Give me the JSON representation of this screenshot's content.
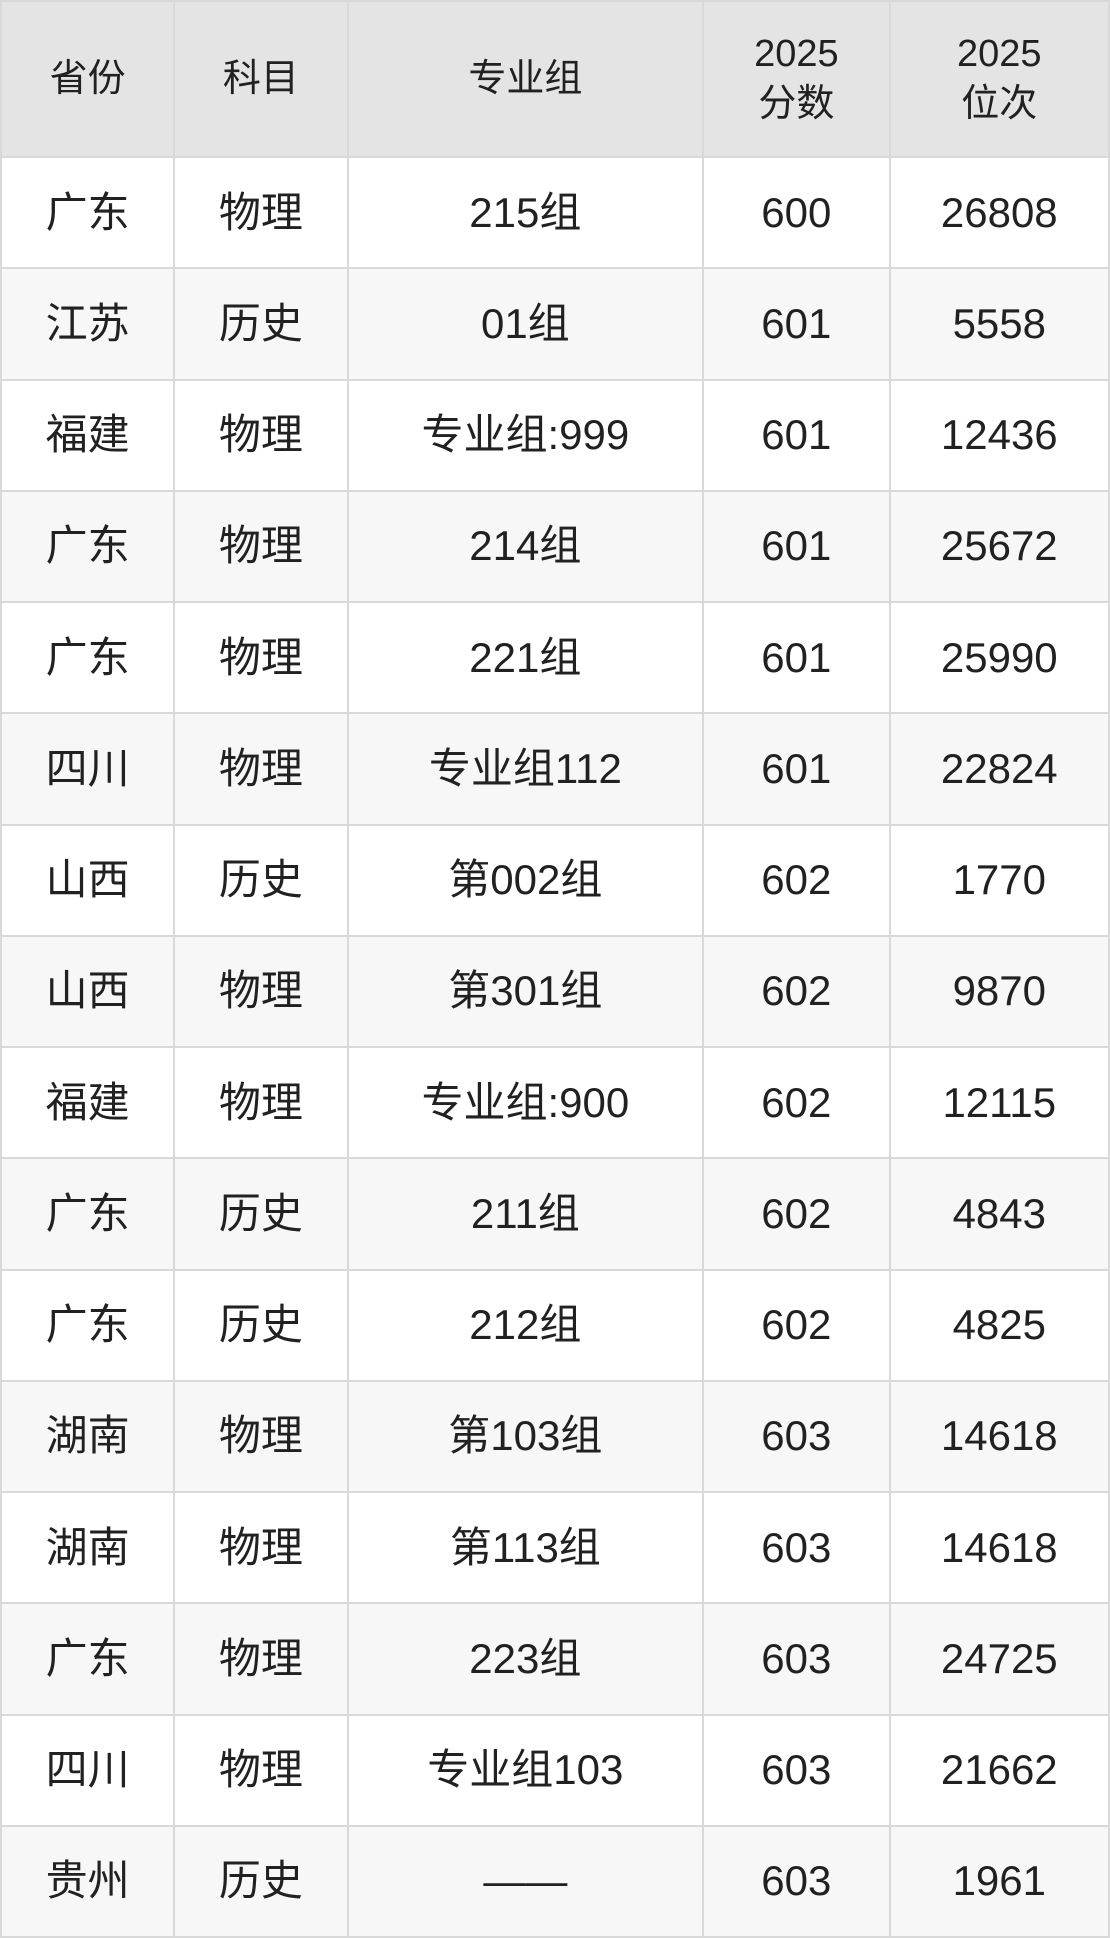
{
  "colors": {
    "header_bg": "#e4e4e4",
    "row_bg_white": "#ffffff",
    "row_bg_shaded": "#f7f7f7",
    "gridline": "#d9d9d9",
    "text": "#212121"
  },
  "table": {
    "columns": [
      {
        "key": "province",
        "label": "省份",
        "lines": [
          "省份"
        ]
      },
      {
        "key": "subject",
        "label": "科目",
        "lines": [
          "科目"
        ]
      },
      {
        "key": "group",
        "label": "专业组",
        "lines": [
          "专业组"
        ]
      },
      {
        "key": "score",
        "label": "2025分数",
        "lines": [
          "2025",
          "分数"
        ]
      },
      {
        "key": "rank",
        "label": "2025位次",
        "lines": [
          "2025",
          "位次"
        ]
      }
    ],
    "rows": [
      [
        "广东",
        "物理",
        "215组",
        "600",
        "26808"
      ],
      [
        "江苏",
        "历史",
        "01组",
        "601",
        "5558"
      ],
      [
        "福建",
        "物理",
        "专业组:999",
        "601",
        "12436"
      ],
      [
        "广东",
        "物理",
        "214组",
        "601",
        "25672"
      ],
      [
        "广东",
        "物理",
        "221组",
        "601",
        "25990"
      ],
      [
        "四川",
        "物理",
        "专业组112",
        "601",
        "22824"
      ],
      [
        "山西",
        "历史",
        "第002组",
        "602",
        "1770"
      ],
      [
        "山西",
        "物理",
        "第301组",
        "602",
        "9870"
      ],
      [
        "福建",
        "物理",
        "专业组:900",
        "602",
        "12115"
      ],
      [
        "广东",
        "历史",
        "211组",
        "602",
        "4843"
      ],
      [
        "广东",
        "历史",
        "212组",
        "602",
        "4825"
      ],
      [
        "湖南",
        "物理",
        "第103组",
        "603",
        "14618"
      ],
      [
        "湖南",
        "物理",
        "第113组",
        "603",
        "14618"
      ],
      [
        "广东",
        "物理",
        "223组",
        "603",
        "24725"
      ],
      [
        "四川",
        "物理",
        "专业组103",
        "603",
        "21662"
      ],
      [
        "贵州",
        "历史",
        "——",
        "603",
        "1961"
      ]
    ]
  },
  "chart_data": {
    "type": "table",
    "title": "",
    "columns": [
      "省份",
      "科目",
      "专业组",
      "2025分数",
      "2025位次"
    ],
    "rows": [
      [
        "广东",
        "物理",
        "215组",
        600,
        26808
      ],
      [
        "江苏",
        "历史",
        "01组",
        601,
        5558
      ],
      [
        "福建",
        "物理",
        "专业组:999",
        601,
        12436
      ],
      [
        "广东",
        "物理",
        "214组",
        601,
        25672
      ],
      [
        "广东",
        "物理",
        "221组",
        601,
        25990
      ],
      [
        "四川",
        "物理",
        "专业组112",
        601,
        22824
      ],
      [
        "山西",
        "历史",
        "第002组",
        602,
        1770
      ],
      [
        "山西",
        "物理",
        "第301组",
        602,
        9870
      ],
      [
        "福建",
        "物理",
        "专业组:900",
        602,
        12115
      ],
      [
        "广东",
        "历史",
        "211组",
        602,
        4843
      ],
      [
        "广东",
        "历史",
        "212组",
        602,
        4825
      ],
      [
        "湖南",
        "物理",
        "第103组",
        603,
        14618
      ],
      [
        "湖南",
        "物理",
        "第113组",
        603,
        14618
      ],
      [
        "广东",
        "物理",
        "223组",
        603,
        24725
      ],
      [
        "四川",
        "物理",
        "专业组103",
        603,
        21662
      ],
      [
        "贵州",
        "历史",
        "——",
        603,
        1961
      ]
    ]
  }
}
